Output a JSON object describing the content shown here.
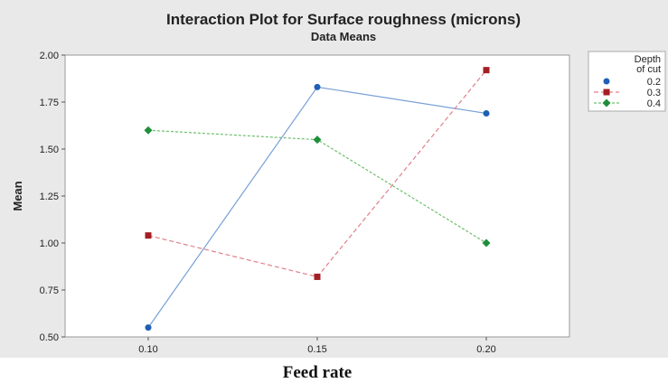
{
  "chart_data": {
    "type": "line",
    "title": "Interaction Plot for Surface roughness (microns)",
    "subtitle": "Data Means",
    "xlabel": "Feed rate",
    "ylabel": "Mean",
    "categories": [
      "0.10",
      "0.15",
      "0.20"
    ],
    "ylim": [
      0.5,
      2.0
    ],
    "yticks": [
      "0.50",
      "0.75",
      "1.00",
      "1.25",
      "1.50",
      "1.75",
      "2.00"
    ],
    "legend_title": "Depth of cut",
    "legend_position": "right",
    "series": [
      {
        "name": "0.2",
        "values": [
          0.55,
          1.83,
          1.69
        ],
        "color": "#7aa0d6",
        "marker_color": "#1f5fb4",
        "marker": "circle",
        "dash": ""
      },
      {
        "name": "0.3",
        "values": [
          1.04,
          0.82,
          1.92
        ],
        "color": "#e0808a",
        "marker_color": "#a31f24",
        "marker": "square",
        "dash": "5,3"
      },
      {
        "name": "0.4",
        "values": [
          1.6,
          1.55,
          1.0
        ],
        "color": "#6cbf6c",
        "marker_color": "#1e8f3a",
        "marker": "diamond",
        "dash": "3,2"
      }
    ]
  }
}
